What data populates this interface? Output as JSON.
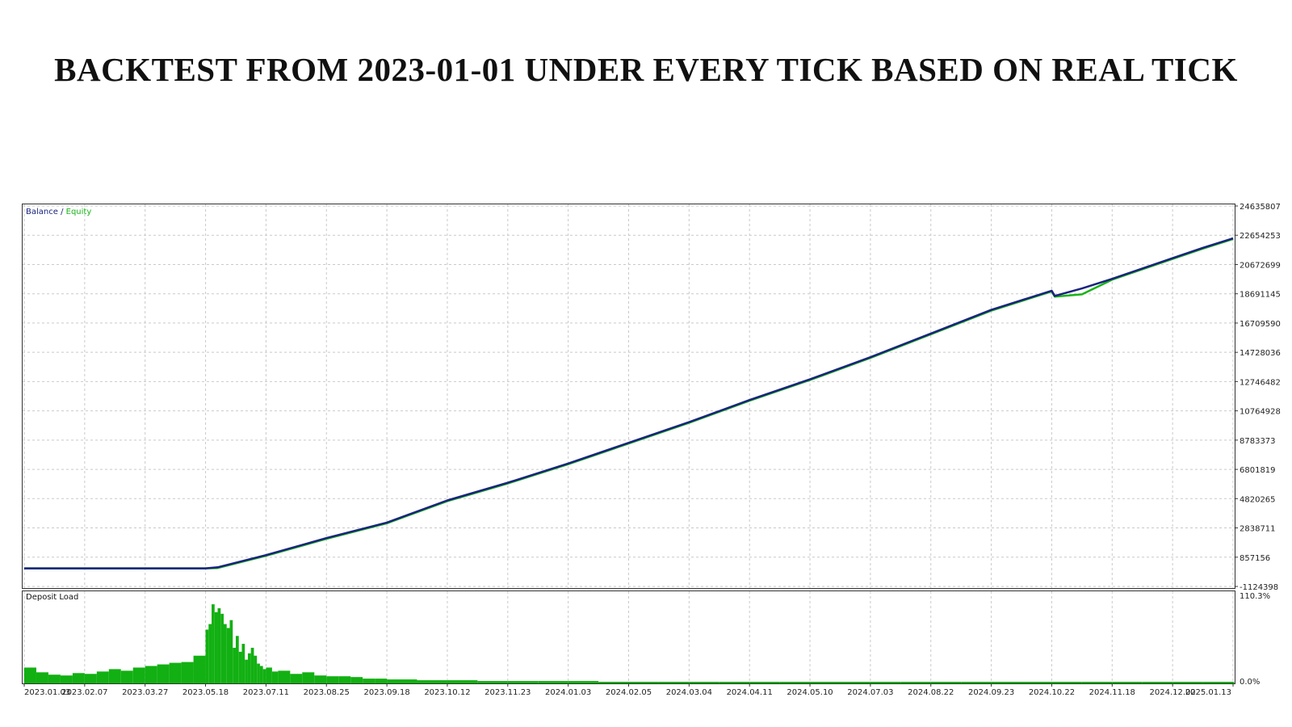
{
  "title": "BACKTEST FROM 2023-01-01 UNDER  EVERY TICK BASED ON REAL TICK",
  "colors": {
    "balance": "#1a237e",
    "equity": "#19b319",
    "deposit_load": "#12b012",
    "grid": "#c9c9c9",
    "frame": "#333333"
  },
  "legend": {
    "balance": "Balance",
    "separator": " / ",
    "equity": "Equity"
  },
  "chart_data": [
    {
      "type": "line",
      "legend": "Balance / Equity",
      "x_tick_labels": [
        "2023.01.03",
        "2023.02.07",
        "2023.03.27",
        "2023.05.18",
        "2023.07.11",
        "2023.08.25",
        "2023.09.18",
        "2023.10.12",
        "2023.11.23",
        "2024.01.03",
        "2024.02.05",
        "2024.03.04",
        "2024.04.11",
        "2024.05.10",
        "2024.07.03",
        "2024.08.22",
        "2024.09.23",
        "2024.10.22",
        "2024.11.18",
        "2024.12.02",
        "2025.01.13"
      ],
      "y_tick_labels": [
        "24635807",
        "22654253",
        "20672699",
        "18691145",
        "16709590",
        "14728036",
        "12746482",
        "10764928",
        "8783373",
        "6801819",
        "4820265",
        "2838711",
        "857156",
        "-1124398"
      ],
      "ylim": [
        -1124398,
        24635807
      ],
      "grid": true,
      "legend_position": "top-left",
      "series": [
        {
          "name": "Balance",
          "points": [
            [
              0,
              100000
            ],
            [
              1,
              100000
            ],
            [
              2,
              100000
            ],
            [
              3,
              100000
            ],
            [
              3.2,
              170000
            ],
            [
              4,
              1000000
            ],
            [
              5,
              2150000
            ],
            [
              6,
              3200000
            ],
            [
              7,
              4700000
            ],
            [
              8,
              5900000
            ],
            [
              9,
              7200000
            ],
            [
              10,
              8600000
            ],
            [
              11,
              10000000
            ],
            [
              12,
              11500000
            ],
            [
              13,
              12900000
            ],
            [
              14,
              14400000
            ],
            [
              15,
              16000000
            ],
            [
              16,
              17600000
            ],
            [
              17,
              18900000
            ],
            [
              17.05,
              18550000
            ],
            [
              17.5,
              19050000
            ],
            [
              18,
              19700000
            ],
            [
              19,
              21100000
            ],
            [
              19.5,
              21800000
            ],
            [
              20,
              22450000
            ]
          ]
        },
        {
          "name": "Equity",
          "points": [
            [
              0,
              100000
            ],
            [
              1,
              100000
            ],
            [
              2,
              100000
            ],
            [
              3,
              100000
            ],
            [
              3.2,
              120000
            ],
            [
              4,
              950000
            ],
            [
              5,
              2100000
            ],
            [
              6,
              3150000
            ],
            [
              7,
              4650000
            ],
            [
              8,
              5850000
            ],
            [
              9,
              7150000
            ],
            [
              10,
              8550000
            ],
            [
              11,
              9950000
            ],
            [
              12,
              11450000
            ],
            [
              13,
              12850000
            ],
            [
              14,
              14350000
            ],
            [
              15,
              15950000
            ],
            [
              16,
              17550000
            ],
            [
              17,
              18850000
            ],
            [
              17.05,
              18500000
            ],
            [
              17.5,
              18650000
            ],
            [
              18,
              19650000
            ],
            [
              19,
              21050000
            ],
            [
              19.5,
              21750000
            ],
            [
              20,
              22400000
            ]
          ]
        }
      ]
    },
    {
      "type": "bar",
      "legend": "Deposit Load",
      "y_tick_labels": [
        "110.3%",
        "0.0%"
      ],
      "ylim": [
        0,
        110.3
      ],
      "x": [
        0,
        0.2,
        0.4,
        0.6,
        0.8,
        1,
        1.2,
        1.4,
        1.6,
        1.8,
        2,
        2.2,
        2.4,
        2.6,
        2.8,
        3,
        3.05,
        3.1,
        3.15,
        3.2,
        3.25,
        3.3,
        3.35,
        3.4,
        3.45,
        3.5,
        3.55,
        3.6,
        3.65,
        3.7,
        3.75,
        3.8,
        3.85,
        3.9,
        3.95,
        4,
        4.1,
        4.2,
        4.4,
        4.6,
        4.8,
        5,
        5.2,
        5.4,
        5.6,
        5.8,
        6,
        6.5,
        7,
        7.5,
        8,
        8.5,
        9,
        9.5,
        10,
        10.5,
        11,
        11.5,
        12,
        12.5,
        13,
        13.5,
        14,
        14.5,
        15,
        15.5,
        16,
        16.5,
        17,
        17.5,
        18,
        18.5,
        19,
        19.5,
        20
      ],
      "values": [
        20,
        14,
        11,
        10,
        13,
        12,
        15,
        18,
        16,
        20,
        22,
        24,
        26,
        27,
        35,
        68,
        75,
        100,
        90,
        95,
        88,
        75,
        70,
        80,
        45,
        60,
        40,
        50,
        30,
        38,
        45,
        35,
        25,
        22,
        18,
        20,
        15,
        16,
        12,
        14,
        10,
        9,
        9,
        8,
        6,
        6,
        5,
        4,
        4,
        3,
        3,
        3,
        3,
        2,
        2,
        2,
        2,
        2,
        2,
        2,
        2,
        2,
        2,
        2,
        2,
        2,
        2,
        2,
        2,
        2,
        2,
        2,
        2,
        2,
        2
      ]
    }
  ]
}
